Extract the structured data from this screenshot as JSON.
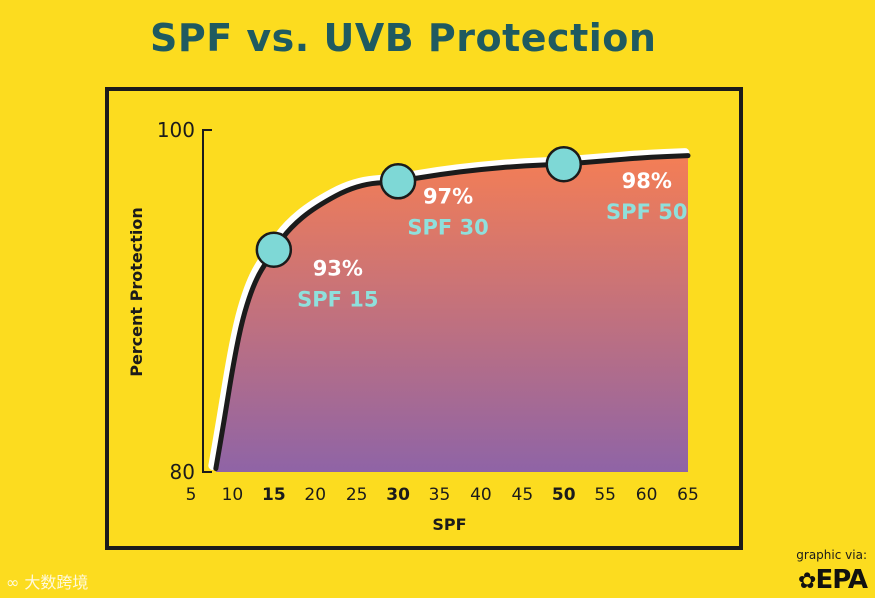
{
  "chart_data": {
    "type": "area",
    "title": "SPF vs. UVB Protection",
    "xlabel": "SPF",
    "ylabel": "Percent Protection",
    "xlim": [
      5,
      65
    ],
    "ylim": [
      80,
      100
    ],
    "x_ticks": [
      5,
      10,
      15,
      20,
      25,
      30,
      35,
      40,
      45,
      50,
      55,
      60,
      65
    ],
    "x_ticks_bold": [
      15,
      30,
      50
    ],
    "y_ticks": [
      80,
      100
    ],
    "series": [
      {
        "name": "Percent Protection",
        "x": [
          8,
          9,
          10,
          11,
          12,
          13,
          14,
          15,
          17,
          20,
          25,
          30,
          35,
          40,
          45,
          50,
          55,
          60,
          65
        ],
        "values": [
          80.2,
          83.0,
          86.0,
          88.5,
          90.2,
          91.4,
          92.2,
          93.0,
          94.3,
          95.5,
          96.8,
          97.0,
          97.4,
          97.7,
          97.9,
          98.0,
          98.2,
          98.4,
          98.5
        ]
      }
    ],
    "points": [
      {
        "x": 15,
        "y": 93,
        "pct_label": "93%",
        "spf_label": "SPF 15"
      },
      {
        "x": 30,
        "y": 97,
        "pct_label": "97%",
        "spf_label": "SPF 30"
      },
      {
        "x": 50,
        "y": 98,
        "pct_label": "98%",
        "spf_label": "SPF 50"
      }
    ],
    "grid": false,
    "colors": {
      "background": "#fcdc1f",
      "fill_top": "#f47e55",
      "fill_bottom": "#8f64a6",
      "line": "#1b1b1b",
      "marker": "#7ed8d6",
      "spf_text": "#8fe0dc",
      "pct_text": "#ffffff"
    }
  },
  "credit": {
    "text": "graphic via:",
    "logo": "EPA"
  },
  "watermark": "大数跨境"
}
